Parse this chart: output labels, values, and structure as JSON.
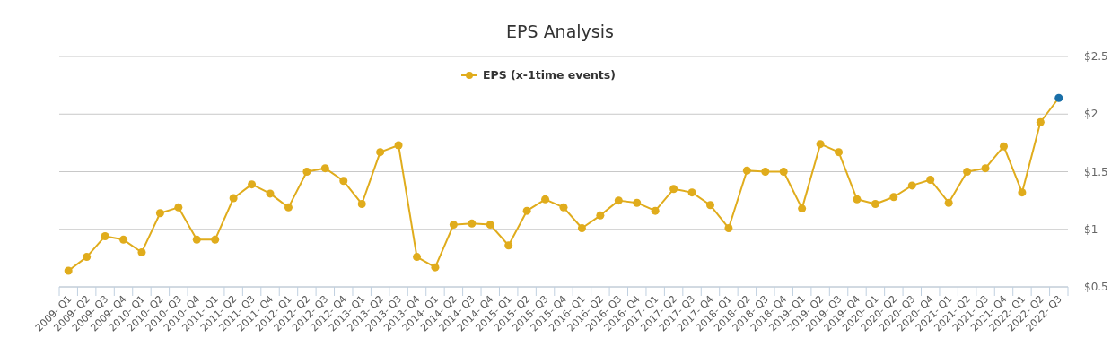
{
  "chart_data": {
    "type": "line",
    "title": "EPS Analysis",
    "categories": [
      "2009- Q1",
      "2009- Q2",
      "2009- Q3",
      "2009- Q4",
      "2010- Q1",
      "2010- Q2",
      "2010- Q3",
      "2010- Q4",
      "2011- Q1",
      "2011- Q2",
      "2011- Q3",
      "2011- Q4",
      "2012- Q1",
      "2012- Q2",
      "2012- Q3",
      "2012- Q4",
      "2013- Q1",
      "2013- Q2",
      "2013- Q3",
      "2013- Q4",
      "2014- Q1",
      "2014- Q2",
      "2014- Q3",
      "2014- Q4",
      "2015- Q1",
      "2015- Q2",
      "2015- Q3",
      "2015- Q4",
      "2016- Q1",
      "2016- Q2",
      "2016- Q3",
      "2016- Q4",
      "2017- Q1",
      "2017- Q2",
      "2017- Q3",
      "2017- Q4",
      "2018- Q1",
      "2018- Q2",
      "2018- Q3",
      "2018- Q4",
      "2019- Q1",
      "2019- Q2",
      "2019- Q3",
      "2019- Q4",
      "2020- Q1",
      "2020- Q2",
      "2020- Q3",
      "2020- Q4",
      "2021- Q1",
      "2021- Q2",
      "2021- Q3",
      "2021- Q4",
      "2022- Q1",
      "2022- Q2",
      "2022- Q3"
    ],
    "series": [
      {
        "name": "EPS (x-1time events)",
        "color": "#e0ac1c",
        "colors": [
          "#e0ac1c",
          "#e0ac1c",
          "#e0ac1c",
          "#e0ac1c",
          "#e0ac1c",
          "#e0ac1c",
          "#e0ac1c",
          "#e0ac1c",
          "#e0ac1c",
          "#e0ac1c",
          "#e0ac1c",
          "#e0ac1c",
          "#e0ac1c",
          "#e0ac1c",
          "#e0ac1c",
          "#e0ac1c",
          "#e0ac1c",
          "#e0ac1c",
          "#e0ac1c",
          "#e0ac1c",
          "#e0ac1c",
          "#e0ac1c",
          "#e0ac1c",
          "#e0ac1c",
          "#e0ac1c",
          "#e0ac1c",
          "#e0ac1c",
          "#e0ac1c",
          "#e0ac1c",
          "#e0ac1c",
          "#e0ac1c",
          "#e0ac1c",
          "#e0ac1c",
          "#e0ac1c",
          "#e0ac1c",
          "#e0ac1c",
          "#e0ac1c",
          "#e0ac1c",
          "#e0ac1c",
          "#e0ac1c",
          "#e0ac1c",
          "#e0ac1c",
          "#e0ac1c",
          "#e0ac1c",
          "#e0ac1c",
          "#e0ac1c",
          "#e0ac1c",
          "#e0ac1c",
          "#e0ac1c",
          "#e0ac1c",
          "#e0ac1c",
          "#e0ac1c",
          "#e0ac1c",
          "#e0ac1c",
          "#1a6fa8"
        ],
        "values": [
          0.64,
          0.76,
          0.94,
          0.91,
          0.8,
          1.14,
          1.19,
          0.91,
          0.91,
          1.27,
          1.39,
          1.31,
          1.19,
          1.5,
          1.53,
          1.42,
          1.22,
          1.67,
          1.73,
          0.76,
          0.67,
          1.04,
          1.05,
          1.04,
          0.86,
          1.16,
          1.26,
          1.19,
          1.01,
          1.12,
          1.25,
          1.23,
          1.16,
          1.35,
          1.32,
          1.21,
          1.01,
          1.51,
          1.5,
          1.5,
          1.18,
          1.74,
          1.67,
          1.26,
          1.22,
          1.28,
          1.38,
          1.43,
          1.23,
          1.5,
          1.53,
          1.72,
          1.32,
          1.93,
          2.14
        ]
      }
    ],
    "ylim": [
      0.5,
      2.5
    ],
    "yticks": [
      {
        "value": 0.5,
        "label": "$0.5"
      },
      {
        "value": 1,
        "label": "$1"
      },
      {
        "value": 1.5,
        "label": "$1.5"
      },
      {
        "value": 2,
        "label": "$2"
      },
      {
        "value": 2.5,
        "label": "$2.5"
      }
    ],
    "grid": "y",
    "legend": "top",
    "marker": "circle"
  }
}
